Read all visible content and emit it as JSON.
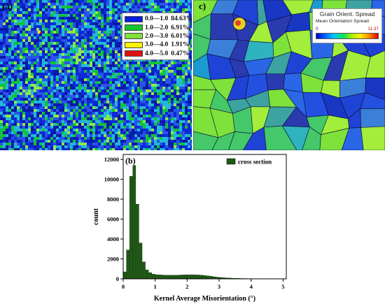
{
  "panel_a": {
    "label": "(a)",
    "legend": [
      {
        "range": "0.0—1.0",
        "pct": "84.63%",
        "color": "#0a1ee0"
      },
      {
        "range": "1.0—2.0",
        "pct": "6.91%",
        "color": "#16c62c"
      },
      {
        "range": "2.0—3.0",
        "pct": "6.01%",
        "color": "#7ee23a"
      },
      {
        "range": "3.0—4.0",
        "pct": "1.91%",
        "color": "#fff200"
      },
      {
        "range": "4.0—5.0",
        "pct": "0.47%",
        "color": "#e01010"
      }
    ]
  },
  "panel_c": {
    "label": "c)",
    "legend_title": "Grain Orient. Spread",
    "legend_subtitle": "Mean Orientation Spread",
    "scale_min": "0",
    "scale_max": "11.37"
  },
  "chart_data": {
    "type": "bar",
    "panel_label": "(b)",
    "title": "",
    "xlabel": "Kernel Average Misorientation (°)",
    "ylabel": "count",
    "legend_label": "cross section",
    "legend_position": "top-right",
    "bar_color": "#1e5a14",
    "xlim": [
      0,
      5.1
    ],
    "ylim": [
      0,
      12500
    ],
    "xticks": [
      "0",
      "1",
      "2",
      "3",
      "4",
      "5"
    ],
    "yticks": [
      "0",
      "2000",
      "4000",
      "6000",
      "8000",
      "10000",
      "12000"
    ],
    "bin_width": 0.1,
    "bin_centers": [
      0.05,
      0.15,
      0.25,
      0.35,
      0.45,
      0.55,
      0.65,
      0.75,
      0.85,
      0.95,
      1.05,
      1.15,
      1.25,
      1.35,
      1.45,
      1.55,
      1.65,
      1.75,
      1.85,
      1.95,
      2.05,
      2.15,
      2.25,
      2.35,
      2.45,
      2.55,
      2.65,
      2.75,
      2.85,
      2.95,
      3.05,
      3.15,
      3.25,
      3.35,
      3.45,
      3.55,
      3.65,
      3.75,
      3.85,
      3.95,
      4.05,
      4.15,
      4.25,
      4.35,
      4.45,
      4.55,
      4.65,
      4.75,
      4.85,
      4.95
    ],
    "values": [
      700,
      2900,
      10300,
      11400,
      7500,
      3600,
      1700,
      900,
      620,
      480,
      420,
      400,
      380,
      370,
      360,
      370,
      360,
      380,
      390,
      400,
      410,
      410,
      400,
      390,
      370,
      340,
      300,
      260,
      210,
      170,
      140,
      110,
      90,
      75,
      60,
      50,
      40,
      35,
      30,
      25,
      22,
      20,
      17,
      15,
      13,
      11,
      9,
      7,
      5,
      4
    ]
  }
}
